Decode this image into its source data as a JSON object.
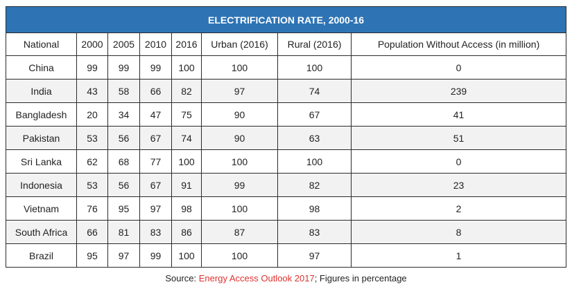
{
  "table": {
    "title": "ELECTRIFICATION RATE, 2000-16",
    "headers": [
      "National",
      "2000",
      "2005",
      "2010",
      "2016",
      "Urban (2016)",
      "Rural (2016)",
      "Population Without Access (in million)"
    ],
    "rows": [
      [
        "China",
        "99",
        "99",
        "99",
        "100",
        "100",
        "100",
        "0"
      ],
      [
        "India",
        "43",
        "58",
        "66",
        "82",
        "97",
        "74",
        "239"
      ],
      [
        "Bangladesh",
        "20",
        "34",
        "47",
        "75",
        "90",
        "67",
        "41"
      ],
      [
        "Pakistan",
        "53",
        "56",
        "67",
        "74",
        "90",
        "63",
        "51"
      ],
      [
        "Sri Lanka",
        "62",
        "68",
        "77",
        "100",
        "100",
        "100",
        "0"
      ],
      [
        "Indonesia",
        "53",
        "56",
        "67",
        "91",
        "99",
        "82",
        "23"
      ],
      [
        "Vietnam",
        "76",
        "95",
        "97",
        "98",
        "100",
        "98",
        "2"
      ],
      [
        "South Africa",
        "66",
        "81",
        "83",
        "86",
        "87",
        "83",
        "8"
      ],
      [
        "Brazil",
        "95",
        "97",
        "99",
        "100",
        "100",
        "97",
        "1"
      ]
    ]
  },
  "source": {
    "prefix": "Source: ",
    "link": "Energy Access Outlook 2017",
    "suffix": "; Figures in percentage"
  },
  "colors": {
    "title_bg": "#2e74b5",
    "link": "#e0302f",
    "zebra": "#f2f2f2"
  }
}
